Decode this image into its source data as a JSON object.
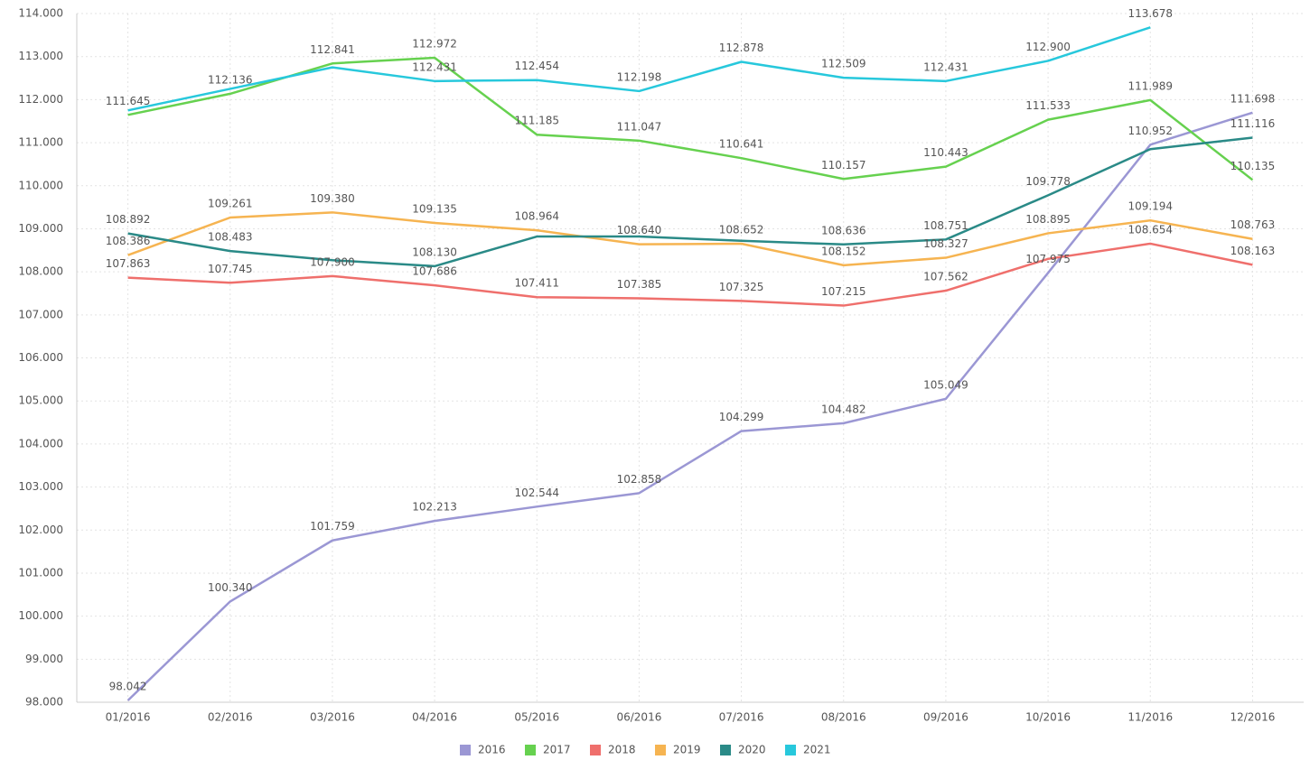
{
  "chart_data": {
    "type": "line",
    "categories": [
      "01/2016",
      "02/2016",
      "03/2016",
      "04/2016",
      "05/2016",
      "06/2016",
      "07/2016",
      "08/2016",
      "09/2016",
      "10/2016",
      "11/2016",
      "12/2016"
    ],
    "series": [
      {
        "name": "2016",
        "color": "#9b97d4",
        "values": [
          98.042,
          100.34,
          101.759,
          102.213,
          102.544,
          102.858,
          104.299,
          104.482,
          105.049,
          107.975,
          110.952,
          111.698
        ],
        "value_labels": [
          "98.042",
          "100.340",
          "101.759",
          "102.213",
          "102.544",
          "102.858",
          "104.299",
          "104.482",
          "105.049",
          "107.975",
          "110.952",
          "111.698"
        ]
      },
      {
        "name": "2017",
        "color": "#66d14f",
        "values": [
          111.645,
          112.136,
          112.841,
          112.972,
          111.185,
          111.047,
          110.641,
          110.157,
          110.443,
          111.533,
          111.989,
          110.135
        ],
        "value_labels": [
          "111.645",
          "112.136",
          "112.841",
          "112.972",
          "111.185",
          "111.047",
          "110.641",
          "110.157",
          "110.443",
          "111.533",
          "111.989",
          "110.135"
        ]
      },
      {
        "name": "2018",
        "color": "#ef6f6c",
        "values": [
          107.863,
          107.745,
          107.9,
          107.686,
          107.411,
          107.385,
          107.325,
          107.215,
          107.562,
          108.3,
          108.654,
          108.163
        ],
        "value_labels": [
          "107.863",
          "107.745",
          "107.900",
          "107.686",
          "107.411",
          "107.385",
          "107.325",
          "107.215",
          "107.562",
          null,
          "108.654",
          "108.163"
        ]
      },
      {
        "name": "2019",
        "color": "#f6b451",
        "values": [
          108.386,
          109.261,
          109.38,
          109.135,
          108.964,
          108.64,
          108.652,
          108.152,
          108.327,
          108.895,
          109.194,
          108.763
        ],
        "value_labels": [
          "108.386",
          "109.261",
          "109.380",
          "109.135",
          "108.964",
          "108.640",
          "108.652",
          "108.152",
          "108.327",
          "108.895",
          "109.194",
          "108.763"
        ]
      },
      {
        "name": "2020",
        "color": "#2a8a87",
        "values": [
          108.892,
          108.483,
          108.27,
          108.13,
          108.82,
          108.82,
          108.72,
          108.636,
          108.751,
          109.778,
          110.85,
          111.116
        ],
        "value_labels": [
          "108.892",
          "108.483",
          null,
          "108.130",
          null,
          null,
          null,
          "108.636",
          "108.751",
          "109.778",
          null,
          "111.116"
        ]
      },
      {
        "name": "2021",
        "color": "#27c8dc",
        "values": [
          111.75,
          112.25,
          112.75,
          112.431,
          112.454,
          112.198,
          112.878,
          112.509,
          112.431,
          112.9,
          113.678,
          null
        ],
        "value_labels": [
          null,
          null,
          null,
          "112.431",
          "112.454",
          "112.198",
          "112.878",
          "112.509",
          "112.431",
          "112.900",
          "113.678",
          null
        ]
      }
    ],
    "ylim": [
      98,
      114
    ],
    "yticks": [
      {
        "value": 98,
        "label": "98.000"
      },
      {
        "value": 99,
        "label": "99.000"
      },
      {
        "value": 100,
        "label": "100.000"
      },
      {
        "value": 101,
        "label": "101.000"
      },
      {
        "value": 102,
        "label": "102.000"
      },
      {
        "value": 103,
        "label": "103.000"
      },
      {
        "value": 104,
        "label": "104.000"
      },
      {
        "value": 105,
        "label": "105.000"
      },
      {
        "value": 106,
        "label": "106.000"
      },
      {
        "value": 107,
        "label": "107.000"
      },
      {
        "value": 108,
        "label": "108.000"
      },
      {
        "value": 109,
        "label": "109.000"
      },
      {
        "value": 110,
        "label": "110.000"
      },
      {
        "value": 111,
        "label": "111.000"
      },
      {
        "value": 112,
        "label": "112.000"
      },
      {
        "value": 113,
        "label": "113.000"
      },
      {
        "value": 114,
        "label": "114.000"
      }
    ],
    "grid": true,
    "legend": "bottom"
  }
}
